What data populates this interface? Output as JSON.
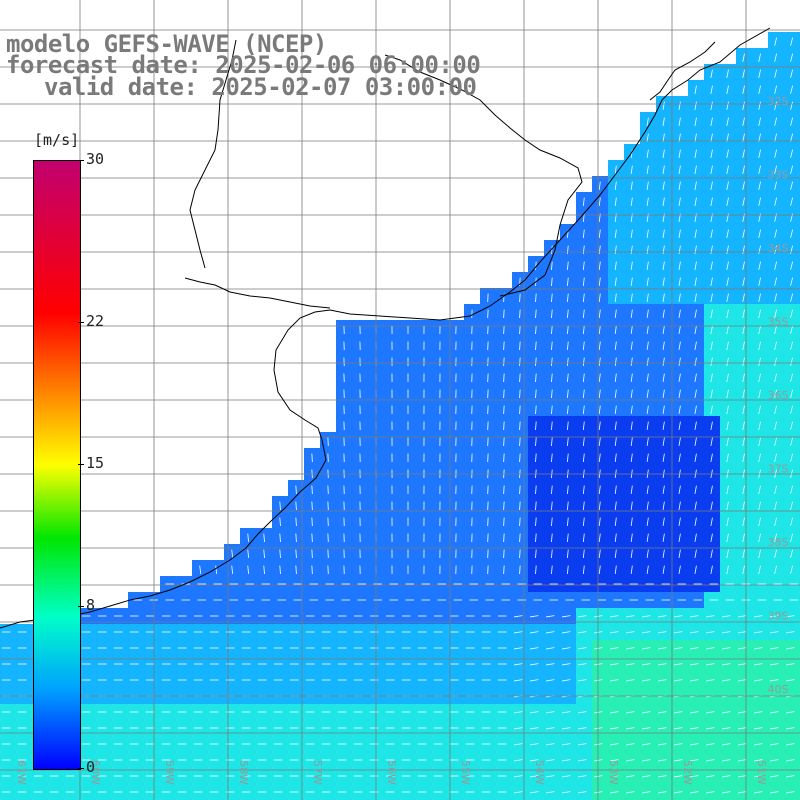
{
  "header": {
    "line1": "modelo GEFS-WAVE (NCEP)",
    "line2": "forecast date: 2025-02-06 06:00:00",
    "line3": "valid date: 2025-02-07 03:00:00"
  },
  "colorbar": {
    "units": "[m/s]",
    "ticks": [
      {
        "label": "30",
        "value": 30
      },
      {
        "label": "22",
        "value": 22
      },
      {
        "label": "15",
        "value": 15
      },
      {
        "label": "8",
        "value": 8
      },
      {
        "label": "0",
        "value": 0
      }
    ],
    "min": 0,
    "max": 30,
    "colors": [
      "#0000ff",
      "#00a0ff",
      "#00ffc8",
      "#00e600",
      "#ffff00",
      "#ff7a00",
      "#ff0000",
      "#c2006f"
    ]
  },
  "map": {
    "lat_labels": [
      "32S",
      "33S",
      "34S",
      "35S",
      "36S",
      "37S",
      "38S",
      "39S",
      "40S"
    ],
    "lon_labels": [
      "61W",
      "60W",
      "59W",
      "58W",
      "57W",
      "56W",
      "55W",
      "54W",
      "53W",
      "52W",
      "51W"
    ],
    "ocean_colors": {
      "calm": "#0a3cf0",
      "low": "#1e78ff",
      "mid": "#14b4ff",
      "high": "#1ee6e6",
      "peak": "#28f0b4"
    },
    "land_color": "#ffffff",
    "coast_color": "#000000",
    "grid_color": "#7a7a7a"
  }
}
